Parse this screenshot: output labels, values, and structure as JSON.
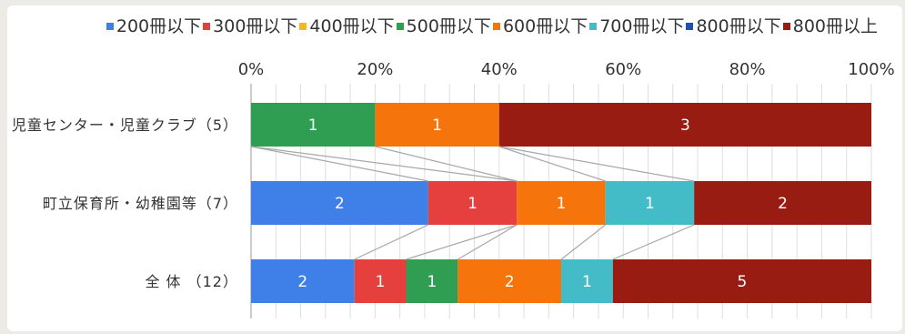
{
  "chart_data": {
    "type": "bar",
    "orientation": "horizontal",
    "stacked": "percent",
    "x_ticks": [
      "0%",
      "20%",
      "40%",
      "60%",
      "80%",
      "100%"
    ],
    "xlim": [
      0,
      100
    ],
    "grid": true,
    "legend_position": "top",
    "categories": [
      "児童センター・児童クラブ（5）",
      "町立保育所・幼稚園等（7）",
      "全 体 （12）"
    ],
    "series": [
      {
        "name": "200冊以下",
        "color": "#3f7fe8",
        "values": [
          0,
          2,
          2
        ]
      },
      {
        "name": "300冊以下",
        "color": "#e5403d",
        "values": [
          0,
          1,
          1
        ]
      },
      {
        "name": "400冊以下",
        "color": "#f5b919",
        "values": [
          0,
          0,
          0
        ]
      },
      {
        "name": "500冊以下",
        "color": "#2f9e52",
        "values": [
          1,
          0,
          1
        ]
      },
      {
        "name": "600冊以下",
        "color": "#f6740c",
        "values": [
          1,
          1,
          2
        ]
      },
      {
        "name": "700冊以下",
        "color": "#44bcc8",
        "values": [
          0,
          1,
          1
        ]
      },
      {
        "name": "800冊以下",
        "color": "#1f4fb0",
        "values": [
          0,
          0,
          0
        ]
      },
      {
        "name": "800冊以上",
        "color": "#981c12",
        "values": [
          3,
          2,
          5
        ]
      }
    ]
  }
}
